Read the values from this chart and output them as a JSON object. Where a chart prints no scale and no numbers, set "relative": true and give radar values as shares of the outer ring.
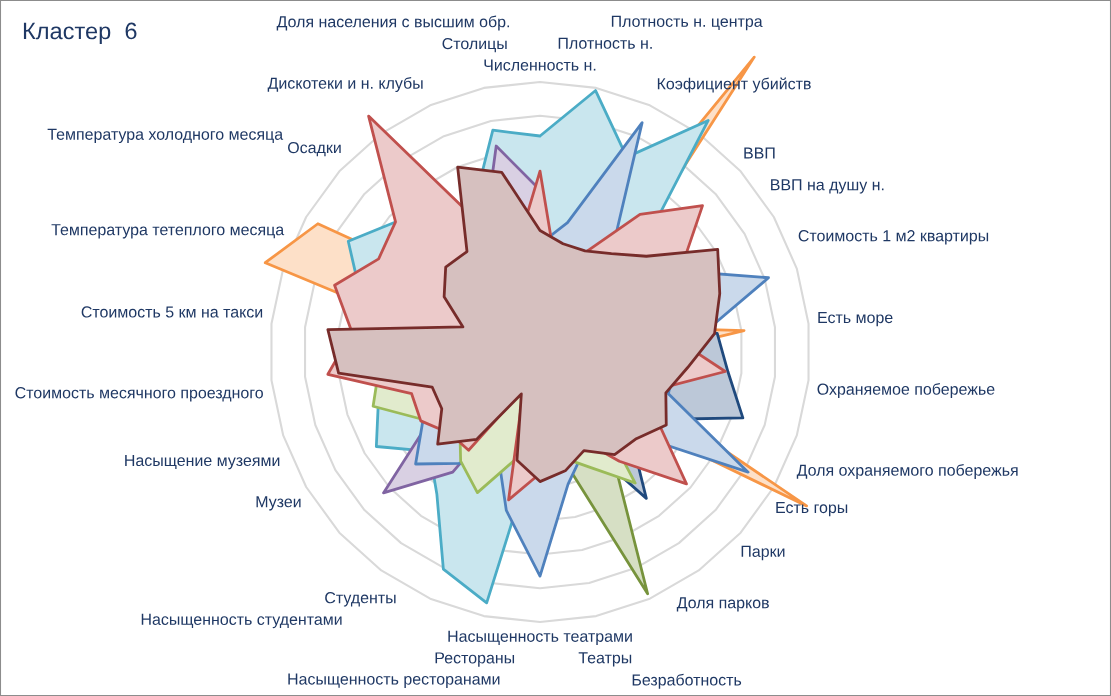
{
  "chart_data": {
    "type": "radar",
    "title": "Кластер  6",
    "relative": true,
    "grid": true,
    "categories": [
      "Численность н.",
      "Плотность н.",
      "Плотность н. центра",
      "Коэфициент убийств",
      "ВВП",
      "ВВП на душу н.",
      "Стоимость 1 м2 квартиры",
      "Есть море",
      "Охраняемое побережье",
      "Доля охраняемого побережья",
      "Есть горы",
      "Парки",
      "Доля парков",
      "Безработность",
      "Театры",
      "Насыщенность театрами",
      "Рестораны",
      "Насыщенность ресторанами",
      "Студенты",
      "Насыщенность студентами",
      "Музеи",
      "Насыщение музеями",
      "Стоимость месячного проездного",
      "Стоимость 5 км на такси",
      "Температура тетеплого месяца",
      "Температура холодного месяца",
      "Осадки",
      "Дискотеки и н. клубы",
      "Доля населения с высшим обр.",
      "Столицы"
    ],
    "series": [
      {
        "color": "#f79646",
        "values": [
          0.25,
          0.3,
          0.3,
          1.35,
          0.3,
          0.3,
          0.3,
          0.76,
          0.3,
          0.3,
          1.14,
          0.3,
          0.25,
          0.25,
          0.25,
          0.25,
          0.25,
          0.15,
          0.25,
          0.25,
          0.25,
          0.25,
          0.3,
          0.3,
          1.07,
          0.95,
          0.3,
          0.25,
          0.25,
          0.25
        ]
      },
      {
        "color": "#4bacc6",
        "values": [
          0.8,
          0.99,
          0.79,
          1.06,
          0.45,
          0.3,
          0.3,
          0.3,
          0.3,
          0.3,
          0.3,
          0.3,
          0.3,
          0.3,
          0.3,
          0.3,
          0.95,
          0.88,
          0.65,
          0.55,
          0.7,
          0.63,
          0.5,
          0.5,
          0.7,
          0.82,
          0.72,
          0.45,
          0.6,
          0.84
        ]
      },
      {
        "color": "#8064a2",
        "values": [
          0.6,
          0.3,
          0.3,
          0.3,
          0.3,
          0.3,
          0.3,
          0.3,
          0.3,
          0.3,
          0.3,
          0.3,
          0.3,
          0.3,
          0.3,
          0.3,
          0.3,
          0.15,
          0.55,
          0.78,
          0.45,
          0.3,
          0.3,
          0.3,
          0.3,
          0.3,
          0.3,
          0.3,
          0.5,
          0.78
        ]
      },
      {
        "color": "#1f497d",
        "values": [
          0.3,
          0.3,
          0.3,
          0.3,
          0.3,
          0.3,
          0.3,
          0.66,
          0.7,
          0.79,
          0.5,
          0.45,
          0.67,
          0.35,
          0.3,
          0.3,
          0.3,
          0.15,
          0.3,
          0.3,
          0.3,
          0.3,
          0.3,
          0.3,
          0.3,
          0.3,
          0.3,
          0.3,
          0.3,
          0.3
        ]
      },
      {
        "color": "#77933c",
        "values": [
          0.3,
          0.3,
          0.3,
          0.3,
          0.3,
          0.3,
          0.3,
          0.3,
          0.3,
          0.3,
          0.3,
          0.3,
          0.45,
          0.98,
          0.4,
          0.3,
          0.3,
          0.15,
          0.3,
          0.3,
          0.3,
          0.3,
          0.3,
          0.3,
          0.3,
          0.3,
          0.3,
          0.3,
          0.3,
          0.3
        ]
      },
      {
        "color": "#4f81bd",
        "values": [
          0.4,
          0.49,
          0.93,
          0.45,
          0.45,
          0.6,
          0.89,
          0.6,
          0.5,
          0.5,
          0.89,
          0.45,
          0.4,
          0.4,
          0.5,
          0.83,
          0.6,
          0.39,
          0.51,
          0.62,
          0.5,
          0.55,
          0.55,
          0.5,
          0.42,
          0.42,
          0.49,
          0.4,
          0.4,
          0.4
        ]
      },
      {
        "color": "#9bbb59",
        "values": [
          0.25,
          0.25,
          0.25,
          0.25,
          0.25,
          0.25,
          0.25,
          0.25,
          0.25,
          0.25,
          0.25,
          0.25,
          0.6,
          0.47,
          0.4,
          0.25,
          0.4,
          0.57,
          0.5,
          0.4,
          0.5,
          0.65,
          0.6,
          0.25,
          0.25,
          0.25,
          0.25,
          0.25,
          0.25,
          0.25
        ]
      },
      {
        "color": "#c0504d",
        "values": [
          0.67,
          0.3,
          0.4,
          0.63,
          0.81,
          0.6,
          0.55,
          0.5,
          0.69,
          0.45,
          0.5,
          0.73,
          0.5,
          0.35,
          0.4,
          0.45,
          0.56,
          0.15,
          0.45,
          0.45,
          0.51,
          0.5,
          0.79,
          0.7,
          0.8,
          0.69,
          0.72,
          1.08,
          0.5,
          0.4
        ]
      },
      {
        "color": "#772c2a",
        "values": [
          0.45,
          0.41,
          0.41,
          0.45,
          0.53,
          0.76,
          0.7,
          0.65,
          0.55,
          0.49,
          0.54,
          0.48,
          0.47,
          0.4,
          0.45,
          0.48,
          0.41,
          0.17,
          0.4,
          0.51,
          0.42,
          0.42,
          0.75,
          0.79,
          0.3,
          0.41,
          0.47,
          0.46,
          0.75,
          0.68
        ]
      }
    ]
  }
}
